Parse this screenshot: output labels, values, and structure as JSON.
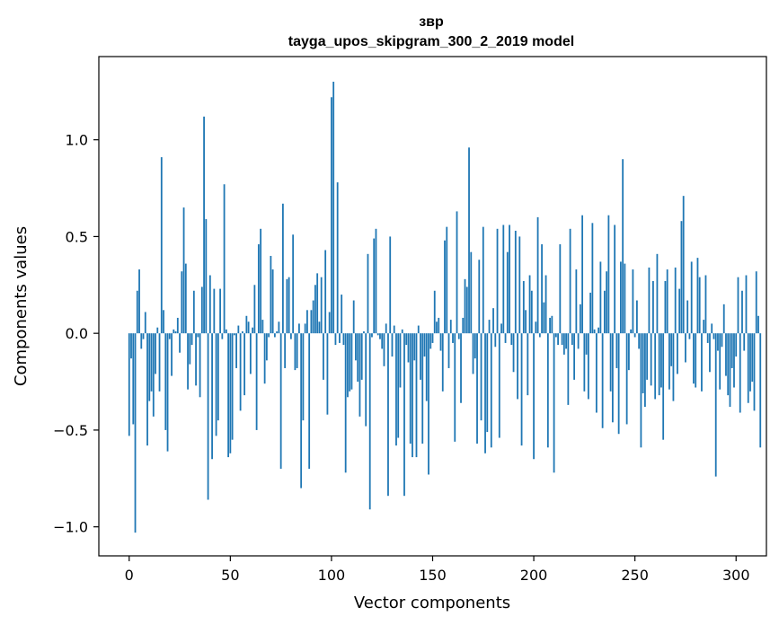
{
  "chart_data": {
    "type": "bar",
    "title": "звр",
    "subtitle": "tayga_upos_skipgram_300_2_2019 model",
    "xlabel": "Vector components",
    "ylabel": "Components values",
    "xlim": [
      -15,
      315
    ],
    "ylim": [
      -1.15,
      1.43
    ],
    "xticks": [
      0,
      50,
      100,
      150,
      200,
      250,
      300
    ],
    "xtick_labels": [
      "0",
      "50",
      "100",
      "150",
      "200",
      "250",
      "300"
    ],
    "yticks": [
      -1.0,
      -0.5,
      0.0,
      0.5,
      1.0
    ],
    "ytick_labels": [
      "−1.0",
      "−0.5",
      "0.0",
      "0.5",
      "1.0"
    ],
    "grid": false,
    "bar_color": "#1f77b4",
    "values": [
      -0.53,
      -0.13,
      -0.47,
      -1.03,
      0.22,
      0.33,
      -0.08,
      -0.03,
      0.11,
      -0.58,
      -0.35,
      -0.3,
      -0.43,
      -0.21,
      0.03,
      -0.3,
      0.91,
      0.12,
      -0.5,
      -0.61,
      -0.03,
      -0.22,
      0.02,
      0.01,
      0.08,
      -0.1,
      0.32,
      0.65,
      0.36,
      -0.29,
      -0.16,
      -0.06,
      0.22,
      -0.27,
      -0.02,
      -0.33,
      0.24,
      1.12,
      0.59,
      -0.86,
      0.3,
      -0.65,
      0.23,
      -0.53,
      -0.45,
      0.23,
      -0.03,
      0.77,
      0.02,
      -0.64,
      -0.62,
      -0.55,
      -0.01,
      -0.18,
      0.04,
      -0.4,
      0.01,
      -0.32,
      0.09,
      0.06,
      -0.21,
      0.03,
      0.25,
      -0.5,
      0.46,
      0.54,
      0.07,
      -0.26,
      -0.14,
      -0.02,
      0.4,
      0.33,
      -0.02,
      0.01,
      0.06,
      -0.7,
      0.67,
      -0.18,
      0.28,
      0.29,
      -0.03,
      0.51,
      -0.19,
      -0.18,
      0.05,
      -0.8,
      -0.45,
      0.05,
      0.12,
      -0.7,
      0.12,
      0.17,
      0.25,
      0.31,
      0.06,
      0.29,
      -0.24,
      0.43,
      -0.42,
      0.11,
      1.22,
      1.3,
      -0.06,
      0.78,
      -0.05,
      0.2,
      -0.06,
      -0.72,
      -0.33,
      -0.3,
      -0.29,
      0.17,
      -0.14,
      -0.25,
      -0.43,
      -0.24,
      0.01,
      -0.48,
      0.41,
      -0.91,
      -0.02,
      0.49,
      0.54,
      -0.01,
      -0.03,
      -0.08,
      -0.17,
      0.05,
      -0.84,
      0.5,
      -0.12,
      0.04,
      -0.58,
      -0.54,
      -0.28,
      0.02,
      -0.84,
      -0.06,
      -0.15,
      -0.57,
      -0.64,
      -0.14,
      -0.64,
      0.04,
      -0.24,
      -0.57,
      -0.12,
      -0.35,
      -0.73,
      -0.08,
      -0.05,
      0.22,
      0.06,
      0.08,
      -0.09,
      -0.3,
      0.48,
      0.55,
      -0.18,
      0.07,
      -0.05,
      -0.56,
      0.63,
      -0.03,
      -0.36,
      0.08,
      0.28,
      0.24,
      0.96,
      0.42,
      -0.21,
      -0.13,
      -0.57,
      0.38,
      -0.45,
      0.55,
      -0.62,
      -0.51,
      0.07,
      -0.59,
      0.13,
      -0.07,
      0.54,
      -0.54,
      0.05,
      0.56,
      -0.05,
      0.42,
      0.56,
      -0.06,
      -0.2,
      0.53,
      -0.34,
      0.5,
      -0.58,
      0.27,
      0.12,
      -0.32,
      0.3,
      0.22,
      -0.65,
      0.06,
      0.6,
      -0.02,
      0.46,
      0.16,
      0.3,
      -0.59,
      0.08,
      0.09,
      -0.72,
      -0.02,
      -0.06,
      0.46,
      -0.06,
      -0.11,
      -0.08,
      -0.37,
      0.54,
      -0.06,
      -0.24,
      0.33,
      -0.08,
      0.15,
      0.61,
      -0.3,
      -0.11,
      -0.34,
      0.21,
      0.57,
      0.02,
      -0.41,
      0.03,
      0.37,
      -0.49,
      0.22,
      0.32,
      0.61,
      -0.3,
      -0.46,
      0.56,
      -0.18,
      -0.52,
      0.37,
      0.9,
      0.36,
      -0.47,
      -0.19,
      0.02,
      0.33,
      -0.02,
      0.17,
      -0.08,
      -0.59,
      -0.31,
      -0.38,
      -0.24,
      0.34,
      -0.27,
      0.27,
      -0.34,
      0.41,
      -0.32,
      -0.28,
      -0.55,
      0.27,
      0.33,
      -0.29,
      -0.17,
      -0.35,
      0.34,
      -0.21,
      0.23,
      0.58,
      0.71,
      -0.15,
      0.17,
      -0.03,
      0.37,
      -0.26,
      -0.28,
      0.39,
      0.29,
      -0.3,
      0.07,
      0.3,
      -0.05,
      -0.2,
      0.05,
      -0.03,
      -0.74,
      -0.09,
      -0.29,
      -0.07,
      0.15,
      -0.22,
      -0.32,
      -0.38,
      -0.18,
      -0.28,
      -0.12,
      0.29,
      -0.41,
      0.22,
      -0.09,
      0.3,
      -0.36,
      -0.3,
      -0.25,
      -0.4,
      0.32,
      0.09,
      -0.59
    ]
  }
}
